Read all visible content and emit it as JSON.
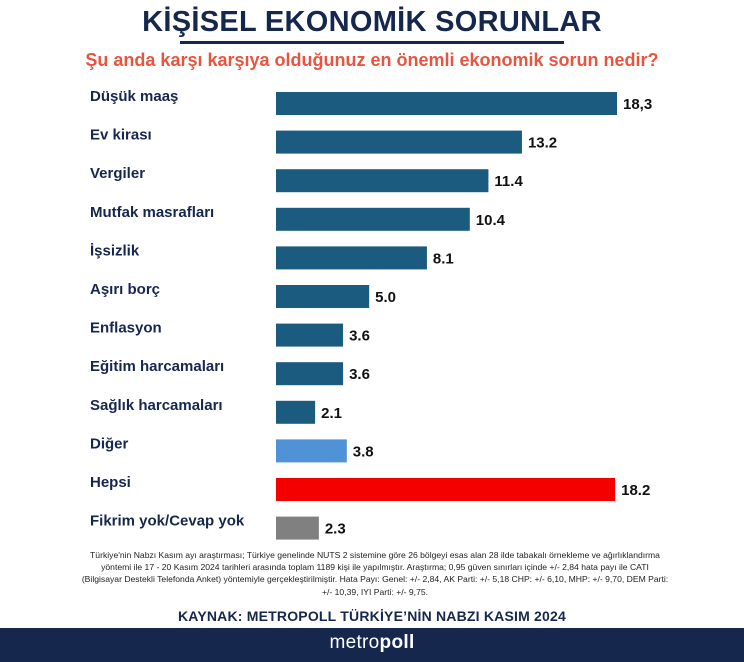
{
  "title": "KİŞİSEL EKONOMİK SORUNLAR",
  "subtitle": "Şu anda karşı karşıya olduğunuz en önemli ekonomik sorun nedir?",
  "chart_data": {
    "type": "bar",
    "orientation": "horizontal",
    "categories": [
      "Düşük maaş",
      "Ev kirası",
      "Vergiler",
      "Mutfak masrafları",
      "İşsizlik",
      "Aşırı borç",
      "Enflasyon",
      "Eğitim harcamaları",
      "Sağlık harcamaları",
      "Diğer",
      "Hepsi",
      "Fikrim yok/Cevap yok"
    ],
    "values": [
      18.3,
      13.2,
      11.4,
      10.4,
      8.1,
      5.0,
      3.6,
      3.6,
      2.1,
      3.8,
      18.2,
      2.3
    ],
    "value_labels": [
      "18,3",
      "13.2",
      "11.4",
      "10.4",
      "8.1",
      "5.0",
      "3.6",
      "3.6",
      "2.1",
      "3.8",
      "18.2",
      "2.3"
    ],
    "colors": [
      "#1c5b80",
      "#1c5b80",
      "#1c5b80",
      "#1c5b80",
      "#1c5b80",
      "#1c5b80",
      "#1c5b80",
      "#1c5b80",
      "#1c5b80",
      "#4f93d6",
      "#f40000",
      "#808080"
    ],
    "xlim": [
      0,
      18.3
    ]
  },
  "note": "Türkiye'nin Nabzı Kasım ayı araştırması; Türkiye genelinde NUTS 2 sistemine göre 26 bölgeyi esas alan 28 ilde tabakalı örnekleme ve ağırlıklandırma yöntemi ile 17 - 20 Kasım 2024 tarihleri arasında toplam 1189 kişi ile yapılmıştır. Araştırma; 0,95 güven sınırları içinde +/- 2,84 hata payı ile CATI (Bilgisayar Destekli Telefonda Anket) yöntemiyle gerçekleştirilmiştir. Hata Payı: Genel: +/- 2,84, AK Parti: +/- 5,18 CHP: +/- 6,10, MHP: +/- 9,70, DEM Parti: +/- 10,39, IYI Parti: +/- 9,75.",
  "source": "KAYNAK: METROPOLL TÜRKİYE’NİN NABZI KASIM 2024",
  "logo": {
    "part1": "metro",
    "part2": "poll"
  },
  "colors": {
    "navy": "#16274d",
    "accent": "#e8553f"
  }
}
